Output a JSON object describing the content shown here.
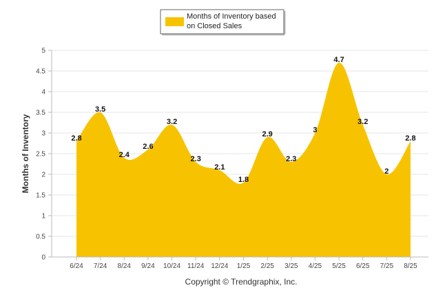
{
  "chart_data": {
    "type": "area",
    "categories": [
      "6/24",
      "7/24",
      "8/24",
      "9/24",
      "10/24",
      "11/24",
      "12/24",
      "1/25",
      "2/25",
      "3/25",
      "4/25",
      "5/25",
      "6/25",
      "7/25",
      "8/25"
    ],
    "series": [
      {
        "name": "Months of Inventory based on Closed Sales",
        "name_lines": [
          "Months of Inventory based",
          "on Closed Sales"
        ],
        "values": [
          2.8,
          3.5,
          2.4,
          2.6,
          3.2,
          2.3,
          2.1,
          1.8,
          2.9,
          2.3,
          3,
          4.7,
          3.2,
          2,
          2.8
        ],
        "labels": [
          "2.8",
          "3.5",
          "2.4",
          "2.6",
          "3.2",
          "2.3",
          "2.1",
          "1.8",
          "2.9",
          "2.3",
          "3",
          "4.7",
          "3.2",
          "2",
          "2.8"
        ],
        "color": "#f7c300"
      }
    ],
    "ylabel": "Months of Inventory",
    "ylim": [
      0,
      5
    ],
    "yticks": [
      "0",
      "0.5",
      "1",
      "1.5",
      "2",
      "2.5",
      "3",
      "3.5",
      "4",
      "4.5",
      "5"
    ],
    "grid": true,
    "legend_position": "top-center",
    "footer": "Copyright © Trendgraphix, Inc."
  },
  "colors": {
    "fill": "#f7c300",
    "grid": "#e6e6e6",
    "axis": "#bbbbbb"
  }
}
